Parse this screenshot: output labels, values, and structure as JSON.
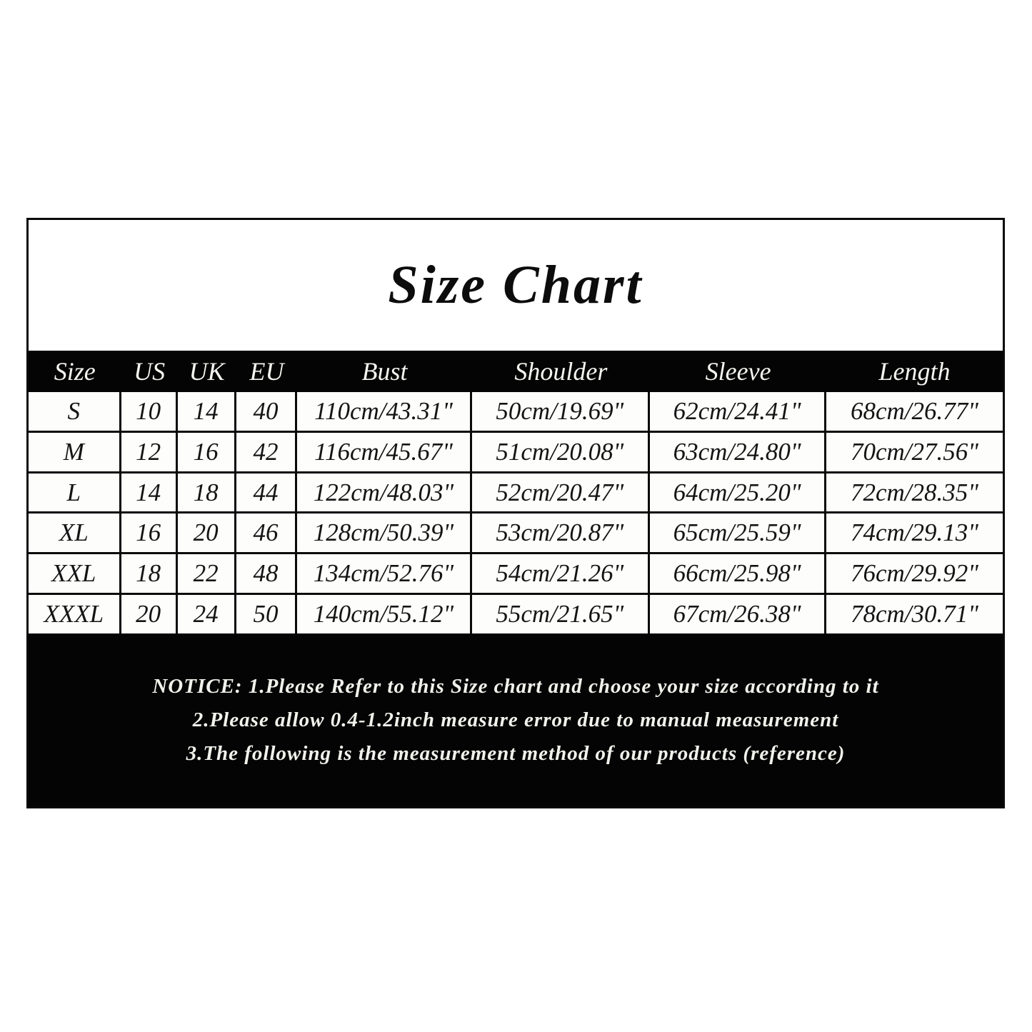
{
  "title": "Size Chart",
  "table": {
    "columns": [
      "Size",
      "US",
      "UK",
      "EU",
      "Bust",
      "Shoulder",
      "Sleeve",
      "Length"
    ],
    "rows": [
      [
        "S",
        "10",
        "14",
        "40",
        "110cm/43.31\"",
        "50cm/19.69\"",
        "62cm/24.41\"",
        "68cm/26.77\""
      ],
      [
        "M",
        "12",
        "16",
        "42",
        "116cm/45.67\"",
        "51cm/20.08\"",
        "63cm/24.80\"",
        "70cm/27.56\""
      ],
      [
        "L",
        "14",
        "18",
        "44",
        "122cm/48.03\"",
        "52cm/20.47\"",
        "64cm/25.20\"",
        "72cm/28.35\""
      ],
      [
        "XL",
        "16",
        "20",
        "46",
        "128cm/50.39\"",
        "53cm/20.87\"",
        "65cm/25.59\"",
        "74cm/29.13\""
      ],
      [
        "XXL",
        "18",
        "22",
        "48",
        "134cm/52.76\"",
        "54cm/21.26\"",
        "66cm/25.98\"",
        "76cm/29.92\""
      ],
      [
        "XXXL",
        "20",
        "24",
        "50",
        "140cm/55.12\"",
        "55cm/21.65\"",
        "67cm/26.38\"",
        "78cm/30.71\""
      ]
    ]
  },
  "notice": {
    "lines": [
      "NOTICE: 1.Please Refer to this Size chart and choose your size according to it",
      "2.Please allow 0.4-1.2inch measure error due to manual measurement",
      "3.The following is the measurement method of our products (reference)"
    ]
  },
  "colors": {
    "band_background": "#040404",
    "band_text": "#f5f5f0",
    "cell_background": "#fdfdfc",
    "cell_text": "#141414",
    "page_background": "#ffffff"
  }
}
